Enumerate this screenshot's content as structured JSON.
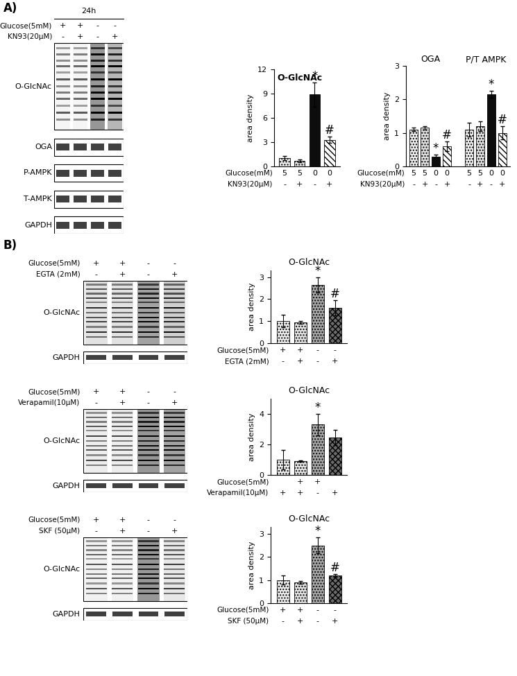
{
  "panel_labels": [
    "A)",
    "B)"
  ],
  "blots": [
    {
      "header": "24h",
      "conditions": [
        {
          "label": "Glucose(5mM)",
          "values": [
            "+",
            "+",
            "-",
            "-"
          ]
        },
        {
          "label": "KN93(20μM)",
          "values": [
            "-",
            "+",
            "-",
            "+"
          ]
        }
      ],
      "rows": [
        "O-GlcNAc",
        "OGA",
        "P-AMPK",
        "T-AMPK",
        "GAPDH"
      ]
    },
    {
      "conditions": [
        {
          "label": "Glucose(5mM)",
          "values": [
            "+",
            "+",
            "-",
            "-"
          ]
        },
        {
          "label": "EGTA (2mM)",
          "values": [
            "-",
            "+",
            "-",
            "+"
          ]
        }
      ],
      "rows": [
        "O-GlcNAc",
        "GAPDH"
      ]
    },
    {
      "conditions": [
        {
          "label": "Glucose(5mM)",
          "values": [
            "+",
            "+",
            "-",
            "-"
          ]
        },
        {
          "label": "Verapamil(10μM)",
          "values": [
            "-",
            "+",
            "-",
            "+"
          ]
        }
      ],
      "rows": [
        "O-GlcNAc",
        "GAPDH"
      ]
    },
    {
      "conditions": [
        {
          "label": "Glucose(5mM)",
          "values": [
            "+",
            "+",
            "-",
            "-"
          ]
        },
        {
          "label": "SKF (50μM)",
          "values": [
            "-",
            "+",
            "-",
            "+"
          ]
        }
      ],
      "rows": [
        "O-GlcNAc",
        "GAPDH"
      ]
    }
  ],
  "chart_data": [
    {
      "type": "bar",
      "title": "O-GlcNAc",
      "y_label": "area density",
      "values": [
        1.0,
        0.7,
        8.9,
        3.3
      ],
      "errors": [
        0.25,
        0.15,
        1.5,
        0.4
      ],
      "annotations": [
        null,
        null,
        "*",
        "#"
      ],
      "colors": [
        "#ededed",
        "#e0e0e0",
        "#0d0d0d",
        "#ffffff"
      ],
      "ylim": [
        0,
        12
      ],
      "yticks": [
        0,
        3,
        6,
        9,
        12
      ],
      "tick_labels": "y",
      "conditions": [
        {
          "label": "Glucose(mM)",
          "values": [
            "5",
            "5",
            "0",
            "0"
          ]
        },
        {
          "label": "KN93(20μM)",
          "values": [
            "-",
            "+",
            "-",
            "+"
          ]
        }
      ]
    },
    {
      "type": "grouped_bar",
      "y_label": "area density",
      "groups": [
        {
          "name": "OGA",
          "values": [
            1.1,
            1.15,
            0.3,
            0.6
          ],
          "errors": [
            0.05,
            0.05,
            0.05,
            0.15
          ],
          "annotations": [
            null,
            null,
            "*",
            "#"
          ]
        },
        {
          "name": "P/T AMPK",
          "values": [
            1.1,
            1.2,
            2.15,
            1.0
          ],
          "errors": [
            0.2,
            0.15,
            0.1,
            0.2
          ],
          "annotations": [
            null,
            null,
            "*",
            "#"
          ]
        }
      ],
      "colors": [
        "#ededed",
        "#e0e0e0",
        "#0d0d0d",
        "#ffffff"
      ],
      "ylim": [
        0,
        3
      ],
      "yticks": [
        0,
        1,
        2,
        3
      ],
      "tick_labels": "y",
      "conditions": [
        {
          "label": "Glucose(mM)",
          "values": [
            "5",
            "5",
            "0",
            "0",
            "5",
            "5",
            "0",
            "0"
          ]
        },
        {
          "label": "KN93(20μM)",
          "values": [
            "-",
            "+",
            "-",
            "+",
            "-",
            "+",
            "-",
            "+"
          ]
        }
      ]
    },
    {
      "type": "bar",
      "title": "O-GlcNAc",
      "y_label": "area density",
      "values": [
        1.0,
        0.95,
        2.65,
        1.6
      ],
      "errors": [
        0.28,
        0.07,
        0.35,
        0.35
      ],
      "annotations": [
        null,
        null,
        "*",
        "#"
      ],
      "colors": [
        "#eeeeee",
        "#e3e3e3",
        "#a6a6a6",
        "#6b6b6b"
      ],
      "ylim": [
        0,
        3.3
      ],
      "yticks": [
        0,
        1,
        2,
        3
      ],
      "tick_labels": "y",
      "conditions": [
        {
          "label": "Glucose(5mM)",
          "values": [
            "+",
            "+",
            "-",
            "-"
          ]
        },
        {
          "label": "EGTA (2mM)",
          "values": [
            "-",
            "+",
            "-",
            "+"
          ]
        }
      ]
    },
    {
      "type": "bar",
      "title": "O-GlcNAc",
      "y_label": "area density",
      "values": [
        1.0,
        0.9,
        3.3,
        2.45
      ],
      "errors": [
        0.65,
        0.05,
        0.7,
        0.5
      ],
      "annotations": [
        null,
        null,
        "*",
        null
      ],
      "colors": [
        "#eeeeee",
        "#e3e3e3",
        "#a6a6a6",
        "#6b6b6b"
      ],
      "ylim": [
        0,
        5
      ],
      "yticks": [
        0,
        2,
        4
      ],
      "tick_labels": "y",
      "conditions": [
        {
          "label": "Glucose(5mM)",
          "values": [
            null,
            "+",
            "+",
            null
          ]
        },
        {
          "label": "Verapamil(10μM)",
          "values": [
            "+",
            "+",
            "-",
            "+"
          ]
        }
      ]
    },
    {
      "type": "bar",
      "title": "O-GlcNAc",
      "y_label": "area density",
      "values": [
        1.0,
        0.9,
        2.5,
        1.2
      ],
      "errors": [
        0.2,
        0.05,
        0.35,
        0.05
      ],
      "annotations": [
        null,
        null,
        "*",
        "#"
      ],
      "colors": [
        "#eeeeee",
        "#e3e3e3",
        "#a6a6a6",
        "#6b6b6b"
      ],
      "ylim": [
        0,
        3.3
      ],
      "yticks": [
        0,
        1,
        2,
        3
      ],
      "tick_labels": "y",
      "conditions": [
        {
          "label": "Glucose(5mM)",
          "values": [
            "+",
            "+",
            "-",
            "-"
          ]
        },
        {
          "label": "SKF (50μM)",
          "values": [
            "-",
            "+",
            "-",
            "+"
          ]
        }
      ]
    }
  ]
}
